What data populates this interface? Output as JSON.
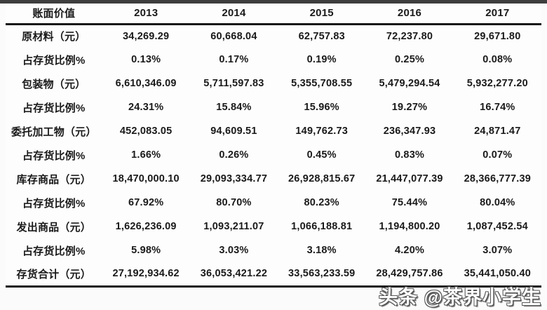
{
  "chart_data": {
    "type": "table",
    "title": "账面价值",
    "columns": [
      "账面价值",
      "2013",
      "2014",
      "2015",
      "2016",
      "2017"
    ],
    "rows": [
      [
        "原材料（元）",
        "34,269.29",
        "60,668.04",
        "62,757.83",
        "72,237.80",
        "29,671.80"
      ],
      [
        "占存货比例%",
        "0.13%",
        "0.17%",
        "0.19%",
        "0.25%",
        "0.08%"
      ],
      [
        "包装物（元）",
        "6,610,346.09",
        "5,711,597.83",
        "5,355,708.55",
        "5,479,294.54",
        "5,932,277.20"
      ],
      [
        "占存货比例%",
        "24.31%",
        "15.84%",
        "15.96%",
        "19.27%",
        "16.74%"
      ],
      [
        "委托加工物（元）",
        "452,083.05",
        "94,609.51",
        "149,762.73",
        "236,347.93",
        "24,871.47"
      ],
      [
        "占存货比例%",
        "1.66%",
        "0.26%",
        "0.45%",
        "0.83%",
        "0.07%"
      ],
      [
        "库存商品（元）",
        "18,470,000.10",
        "29,093,334.77",
        "26,928,815.67",
        "21,447,077.39",
        "28,366,777.39"
      ],
      [
        "占存货比例%",
        "67.92%",
        "80.70%",
        "80.23%",
        "75.44%",
        "80.04%"
      ],
      [
        "发出商品（元）",
        "1,626,236.09",
        "1,093,211.07",
        "1,066,188.81",
        "1,194,800.20",
        "1,087,452.54"
      ],
      [
        "占存货比例%",
        "5.98%",
        "3.03%",
        "3.18%",
        "4.20%",
        "3.07%"
      ],
      [
        "存货合计（元）",
        "27,192,934.62",
        "36,053,421.22",
        "33,563,233.59",
        "28,429,757.86",
        "35,441,050.40"
      ]
    ],
    "layout": {
      "grid": "three-line-table",
      "header_position": "top"
    }
  },
  "watermark": {
    "text": "头条 @茶界小学生"
  },
  "colors": {
    "text": "#1a1a1a",
    "rule_line": "#161616",
    "top_band": "#3e3e3e",
    "background": "#fbfbfb",
    "watermark_fill": "#ffffff",
    "watermark_outline": "#5a5a5a"
  }
}
